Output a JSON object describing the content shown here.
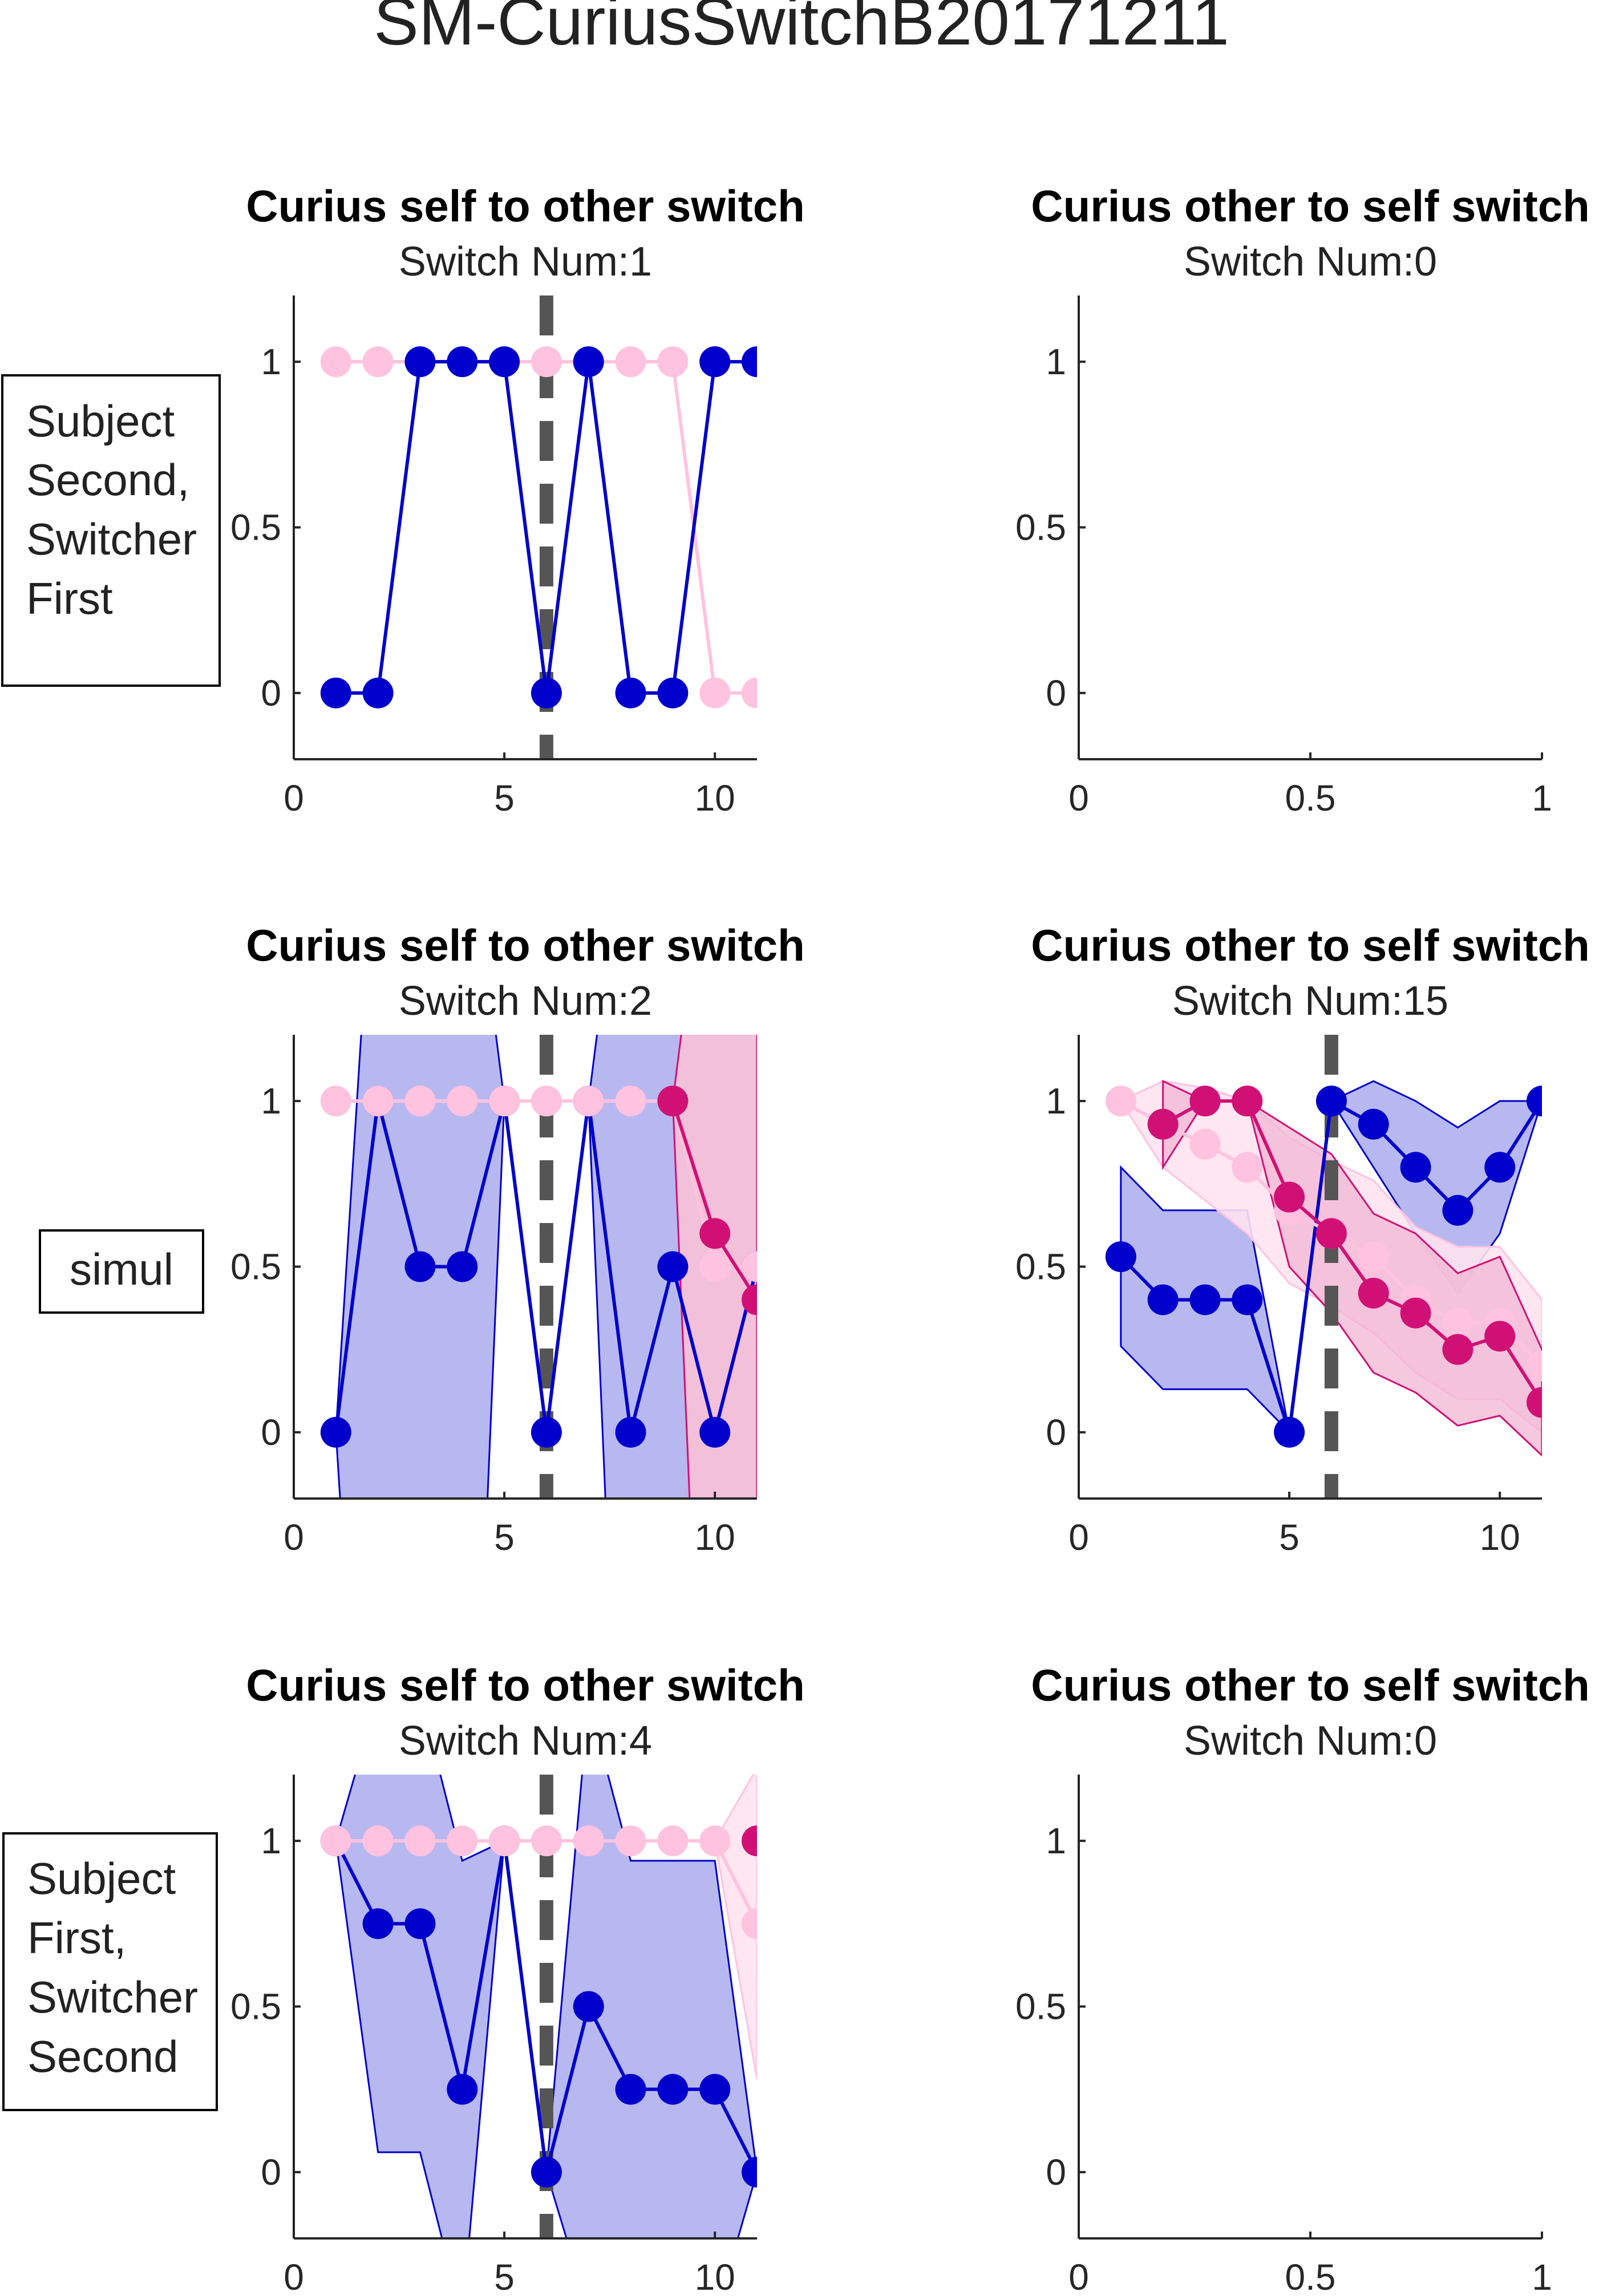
{
  "figure_title": "SM-CuriusSwitchB20171211",
  "row_labels": [
    [
      "Subject",
      "Second,",
      "Switcher",
      "First"
    ],
    [
      "simul"
    ],
    [
      "Subject",
      "First,",
      "Switcher",
      "Second"
    ]
  ],
  "colors": {
    "blue": "#0000cc",
    "blue_band": "#b0b0ef",
    "pink_light": "#ffc2df",
    "pink_light_band": "#ffe3ef",
    "magenta": "#d11075",
    "magenta_band": "#f2b6d3",
    "purple_mix": "#6b3bc0",
    "dashed_line": "#555555"
  },
  "chart_data": [
    {
      "type": "line",
      "row": 0,
      "col": 0,
      "title": "Curius self to other switch",
      "subtitle": "Switch Num:1",
      "xlim": [
        0,
        11
      ],
      "ylim": [
        -0.2,
        1.2
      ],
      "xticks": [
        "0",
        "5",
        "10"
      ],
      "yticks": [
        "0",
        "0.5",
        "1"
      ],
      "switch_x": 6,
      "series": [
        {
          "color": "pink_light",
          "x": [
            1,
            2,
            3,
            4,
            5,
            6,
            7,
            8,
            9,
            10,
            11
          ],
          "y": [
            1,
            1,
            1,
            1,
            1,
            1,
            1,
            1,
            1,
            0,
            0
          ]
        },
        {
          "color": "magenta",
          "x": [
            10
          ],
          "y": [
            1
          ]
        },
        {
          "color": "blue",
          "x": [
            1,
            2,
            3,
            4,
            5,
            6,
            7,
            8,
            9,
            10,
            11
          ],
          "y": [
            0,
            0,
            1,
            1,
            1,
            0,
            1,
            0,
            0,
            1,
            1
          ]
        }
      ]
    },
    {
      "type": "line",
      "row": 0,
      "col": 1,
      "title": "Curius other to self switch",
      "subtitle": "Switch Num:0",
      "xlim": [
        0,
        1
      ],
      "ylim": [
        -0.2,
        1.2
      ],
      "xticks": [
        "0",
        "0.5",
        "1"
      ],
      "yticks": [
        "0",
        "0.5",
        "1"
      ],
      "series": []
    },
    {
      "type": "line",
      "row": 1,
      "col": 0,
      "title": "Curius self to other switch",
      "subtitle": "Switch Num:2",
      "xlim": [
        0,
        11
      ],
      "ylim": [
        -0.2,
        1.2
      ],
      "xticks": [
        "0",
        "5",
        "10"
      ],
      "yticks": [
        "0",
        "0.5",
        "1"
      ],
      "switch_x": 6,
      "series": [
        {
          "color": "blue",
          "x": [
            1,
            2,
            3,
            4,
            5,
            6,
            7,
            8,
            9,
            10,
            11
          ],
          "y": [
            0,
            1,
            0.5,
            0.5,
            1,
            0,
            1,
            0,
            0.5,
            0,
            0.5
          ],
          "lower": [
            0,
            -2,
            -2,
            -2,
            1,
            0,
            1,
            -2,
            -2,
            -2,
            -2
          ],
          "upper": [
            0,
            2,
            2,
            2,
            1,
            0,
            1,
            2,
            2,
            2,
            2
          ]
        },
        {
          "color": "pink_light",
          "x": [
            1,
            2,
            3,
            4,
            5,
            6,
            7,
            8,
            9,
            10,
            11
          ],
          "y": [
            1,
            1,
            1,
            1,
            1,
            1,
            1,
            1,
            1,
            0.5,
            0.5
          ],
          "lower": [
            1,
            1,
            1,
            1,
            1,
            1,
            1,
            1,
            1,
            -2,
            -2
          ],
          "upper": [
            1,
            1,
            1,
            1,
            1,
            1,
            1,
            1,
            1,
            2,
            2
          ]
        },
        {
          "color": "magenta",
          "x": [
            9,
            10,
            11
          ],
          "y": [
            1,
            0.6,
            0.4
          ],
          "lower": [
            1,
            -2,
            -2
          ],
          "upper": [
            1,
            2,
            2
          ]
        }
      ]
    },
    {
      "type": "line",
      "row": 1,
      "col": 1,
      "title": "Curius other to self switch",
      "subtitle": "Switch Num:15",
      "xlim": [
        0,
        11
      ],
      "ylim": [
        -0.2,
        1.2
      ],
      "xticks": [
        "0",
        "5",
        "10"
      ],
      "yticks": [
        "0",
        "0.5",
        "1"
      ],
      "switch_x": 6,
      "series": [
        {
          "color": "blue",
          "x": [
            1,
            2,
            3,
            4,
            5,
            6,
            7,
            8,
            9,
            10,
            11
          ],
          "y": [
            0.53,
            0.4,
            0.4,
            0.4,
            0,
            1,
            0.93,
            0.8,
            0.67,
            0.8,
            1
          ],
          "lower": [
            0.26,
            0.13,
            0.13,
            0.13,
            0,
            1,
            0.8,
            0.6,
            0.42,
            0.6,
            1
          ],
          "upper": [
            0.8,
            0.67,
            0.67,
            0.67,
            0,
            1,
            1.06,
            1.0,
            0.92,
            1.0,
            1
          ]
        },
        {
          "color": "pink_light",
          "x": [
            1,
            2,
            3,
            4,
            5,
            6,
            7,
            8,
            9,
            10,
            11
          ],
          "y": [
            1,
            0.93,
            0.87,
            0.8,
            0.67,
            0.6,
            0.53,
            0.4,
            0.33,
            0.33,
            0.2
          ],
          "lower": [
            1,
            0.8,
            0.7,
            0.6,
            0.45,
            0.38,
            0.3,
            0.18,
            0.1,
            0.1,
            0.0
          ],
          "upper": [
            1,
            1.06,
            1.04,
            1.0,
            0.89,
            0.82,
            0.76,
            0.62,
            0.56,
            0.56,
            0.4
          ]
        },
        {
          "color": "magenta",
          "x": [
            2,
            3,
            4,
            5,
            6,
            7,
            8,
            9,
            10,
            11
          ],
          "y": [
            0.93,
            1,
            1,
            0.71,
            0.6,
            0.42,
            0.36,
            0.25,
            0.29,
            0.09
          ],
          "lower": [
            0.8,
            1,
            1,
            0.5,
            0.36,
            0.18,
            0.12,
            0.02,
            0.05,
            -0.07
          ],
          "upper": [
            1.06,
            1,
            1,
            0.92,
            0.84,
            0.66,
            0.6,
            0.48,
            0.53,
            0.25
          ]
        }
      ]
    },
    {
      "type": "line",
      "row": 2,
      "col": 0,
      "title": "Curius self to other switch",
      "subtitle": "Switch Num:4",
      "xlim": [
        0,
        11
      ],
      "ylim": [
        -0.2,
        1.2
      ],
      "xticks": [
        "0",
        "5",
        "10"
      ],
      "yticks": [
        "0",
        "0.5",
        "1"
      ],
      "switch_x": 6,
      "series": [
        {
          "color": "blue",
          "x": [
            1,
            2,
            3,
            4,
            5,
            6,
            7,
            8,
            9,
            10,
            11
          ],
          "y": [
            1,
            0.75,
            0.75,
            0.25,
            1,
            0,
            0.5,
            0.25,
            0.25,
            0.25,
            0
          ],
          "lower": [
            1,
            0.06,
            0.06,
            -0.44,
            1,
            0,
            -0.42,
            -0.44,
            -0.44,
            -0.44,
            0
          ],
          "upper": [
            1,
            1.44,
            1.44,
            0.94,
            1,
            0,
            1.42,
            0.94,
            0.94,
            0.94,
            0
          ]
        },
        {
          "color": "pink_light",
          "x": [
            1,
            2,
            3,
            4,
            5,
            6,
            7,
            8,
            9,
            10,
            11
          ],
          "y": [
            1,
            1,
            1,
            1,
            1,
            1,
            1,
            1,
            1,
            1,
            0.75
          ],
          "lower": [
            1,
            1,
            1,
            1,
            1,
            1,
            1,
            1,
            1,
            1,
            0.28
          ],
          "upper": [
            1,
            1,
            1,
            1,
            1,
            1,
            1,
            1,
            1,
            1,
            1.22
          ]
        },
        {
          "color": "magenta",
          "x": [
            11
          ],
          "y": [
            1
          ]
        }
      ]
    },
    {
      "type": "line",
      "row": 2,
      "col": 1,
      "title": "Curius other to self switch",
      "subtitle": "Switch Num:0",
      "xlim": [
        0,
        1
      ],
      "ylim": [
        -0.2,
        1.2
      ],
      "xticks": [
        "0",
        "0.5",
        "1"
      ],
      "yticks": [
        "0",
        "0.5",
        "1"
      ],
      "series": []
    }
  ]
}
